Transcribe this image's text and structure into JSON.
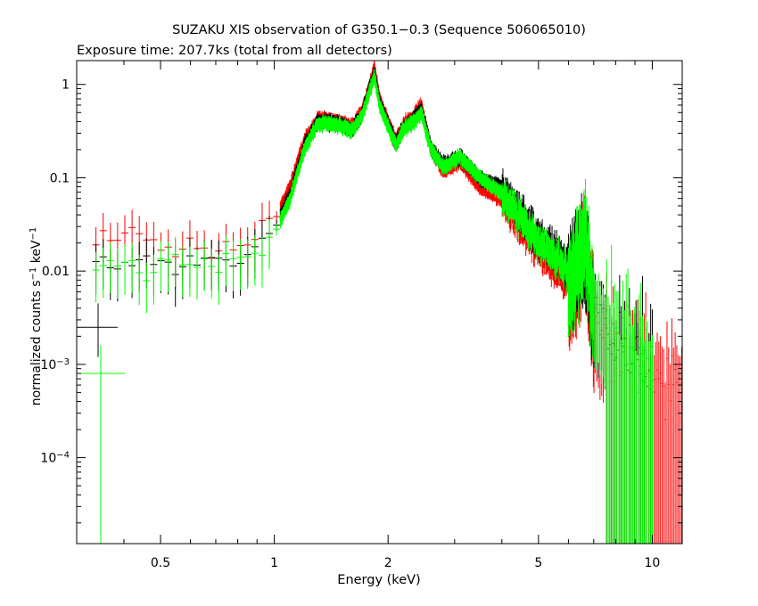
{
  "chart_data": {
    "type": "scatter",
    "title": "SUZAKU XIS observation of G350.1−0.3 (Sequence 506065010)",
    "subtitle": "Exposure time: 207.7ks (total from all detectors)",
    "xlabel": "Energy (keV)",
    "ylabel": {
      "base": "normalized counts s",
      "sup1": "−1",
      "mid": " keV",
      "sup2": "−1"
    },
    "xscale": "log",
    "yscale": "log",
    "xlim": [
      0.3,
      12
    ],
    "ylim": [
      1.2e-05,
      1.8
    ],
    "grid": false,
    "x_ticks": [
      {
        "value": 0.5,
        "label": "0.5"
      },
      {
        "value": 1,
        "label": "1"
      },
      {
        "value": 2,
        "label": "2"
      },
      {
        "value": 5,
        "label": "5"
      },
      {
        "value": 10,
        "label": "10"
      }
    ],
    "y_ticks": [
      {
        "value": 0.0001,
        "base": "10",
        "exp": "−4"
      },
      {
        "value": 0.001,
        "base": "10",
        "exp": "−3"
      },
      {
        "value": 0.01,
        "label": "0.01"
      },
      {
        "value": 0.1,
        "label": "0.1"
      },
      {
        "value": 1,
        "label": "1"
      }
    ],
    "series": [
      {
        "color": "#ff0000",
        "spectrum": [
          [
            0.3,
            0.025
          ],
          [
            0.45,
            0.022
          ],
          [
            0.6,
            0.018
          ],
          [
            0.8,
            0.018
          ],
          [
            0.9,
            0.022
          ],
          [
            1.0,
            0.035
          ],
          [
            1.1,
            0.08
          ],
          [
            1.2,
            0.25
          ],
          [
            1.3,
            0.42
          ],
          [
            1.4,
            0.42
          ],
          [
            1.5,
            0.4
          ],
          [
            1.6,
            0.35
          ],
          [
            1.7,
            0.5
          ],
          [
            1.78,
            0.9
          ],
          [
            1.84,
            1.55
          ],
          [
            1.9,
            0.7
          ],
          [
            2.0,
            0.4
          ],
          [
            2.1,
            0.25
          ],
          [
            2.2,
            0.38
          ],
          [
            2.3,
            0.42
          ],
          [
            2.45,
            0.6
          ],
          [
            2.6,
            0.2
          ],
          [
            2.8,
            0.12
          ],
          [
            3.1,
            0.15
          ],
          [
            3.5,
            0.08
          ],
          [
            4.0,
            0.06
          ],
          [
            5.0,
            0.018
          ],
          [
            6.0,
            0.008
          ],
          [
            6.65,
            0.025
          ],
          [
            7.0,
            0.004
          ],
          [
            8.0,
            0.0015
          ],
          [
            10.0,
            0.0008
          ],
          [
            12.0,
            0.0006
          ]
        ]
      },
      {
        "color": "#00ff00",
        "spectrum": [
          [
            0.3,
            0.01
          ],
          [
            0.45,
            0.012
          ],
          [
            0.6,
            0.012
          ],
          [
            0.8,
            0.013
          ],
          [
            0.9,
            0.016
          ],
          [
            1.0,
            0.025
          ],
          [
            1.1,
            0.06
          ],
          [
            1.2,
            0.2
          ],
          [
            1.3,
            0.38
          ],
          [
            1.4,
            0.38
          ],
          [
            1.5,
            0.36
          ],
          [
            1.6,
            0.32
          ],
          [
            1.7,
            0.45
          ],
          [
            1.78,
            0.8
          ],
          [
            1.84,
            1.25
          ],
          [
            1.9,
            0.6
          ],
          [
            2.0,
            0.36
          ],
          [
            2.1,
            0.22
          ],
          [
            2.2,
            0.34
          ],
          [
            2.3,
            0.38
          ],
          [
            2.45,
            0.5
          ],
          [
            2.6,
            0.2
          ],
          [
            2.8,
            0.13
          ],
          [
            3.1,
            0.17
          ],
          [
            3.5,
            0.1
          ],
          [
            4.0,
            0.07
          ],
          [
            5.0,
            0.022
          ],
          [
            6.0,
            0.011
          ],
          [
            6.65,
            0.035
          ],
          [
            7.0,
            0.006
          ],
          [
            8.0,
            0.002
          ],
          [
            10.0,
            0.0009
          ]
        ]
      },
      {
        "color": "#000000",
        "spectrum": [
          [
            0.3,
            0.015
          ],
          [
            0.45,
            0.012
          ],
          [
            0.6,
            0.012
          ],
          [
            0.8,
            0.013
          ],
          [
            0.9,
            0.017
          ],
          [
            1.0,
            0.028
          ],
          [
            1.1,
            0.065
          ],
          [
            1.2,
            0.22
          ],
          [
            1.3,
            0.4
          ],
          [
            1.4,
            0.4
          ],
          [
            1.5,
            0.38
          ],
          [
            1.6,
            0.33
          ],
          [
            1.7,
            0.47
          ],
          [
            1.78,
            0.85
          ],
          [
            1.84,
            1.35
          ],
          [
            1.9,
            0.65
          ],
          [
            2.0,
            0.38
          ],
          [
            2.1,
            0.23
          ],
          [
            2.2,
            0.35
          ],
          [
            2.3,
            0.4
          ],
          [
            2.45,
            0.55
          ],
          [
            2.6,
            0.21
          ],
          [
            2.8,
            0.14
          ],
          [
            3.1,
            0.17
          ],
          [
            3.5,
            0.1
          ],
          [
            4.0,
            0.08
          ],
          [
            5.0,
            0.025
          ],
          [
            6.0,
            0.012
          ],
          [
            6.65,
            0.03
          ],
          [
            7.0,
            0.005
          ],
          [
            8.0,
            0.0018
          ],
          [
            10.0,
            0.001
          ]
        ]
      }
    ]
  }
}
